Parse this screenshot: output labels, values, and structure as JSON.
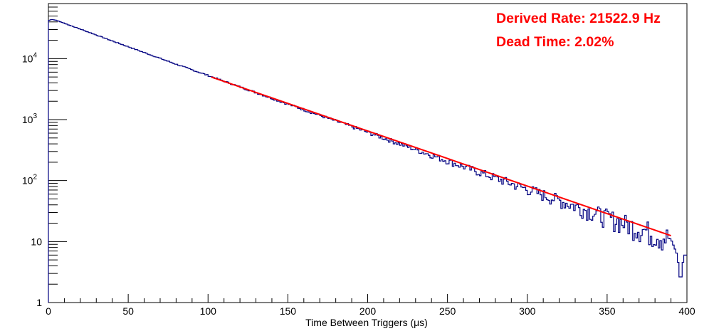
{
  "chart_data": {
    "type": "histogram",
    "title": "",
    "xlabel": "Time Between Triggers (μs)",
    "ylabel": "",
    "xlim": [
      0,
      400
    ],
    "ylim": [
      1,
      80000
    ],
    "yscale": "log",
    "grid": false,
    "x_ticks": [
      "0",
      "50",
      "100",
      "150",
      "200",
      "250",
      "300",
      "350",
      "400"
    ],
    "y_ticks": [
      {
        "base": "1",
        "exp": ""
      },
      {
        "base": "10",
        "exp": ""
      },
      {
        "base": "10",
        "exp": "2"
      },
      {
        "base": "10",
        "exp": "3"
      },
      {
        "base": "10",
        "exp": "4"
      }
    ],
    "series": [
      {
        "type": "step",
        "color": "#000080",
        "bin_width": 1,
        "profile": [
          {
            "x": 0,
            "y": 42000
          },
          {
            "x": 2,
            "y": 44000
          },
          {
            "x": 5,
            "y": 42500
          },
          {
            "x": 10,
            "y": 38000
          },
          {
            "x": 20,
            "y": 30500
          },
          {
            "x": 40,
            "y": 19500
          },
          {
            "x": 60,
            "y": 12600
          },
          {
            "x": 80,
            "y": 8100
          },
          {
            "x": 100,
            "y": 5300
          },
          {
            "x": 150,
            "y": 1800
          },
          {
            "x": 200,
            "y": 620
          },
          {
            "x": 250,
            "y": 210
          },
          {
            "x": 300,
            "y": 72
          },
          {
            "x": 350,
            "y": 25
          },
          {
            "x": 390,
            "y": 11
          },
          {
            "x": 394,
            "y": 6
          },
          {
            "x": 396,
            "y": 2
          },
          {
            "x": 398,
            "y": 6
          },
          {
            "x": 400,
            "y": 6
          }
        ]
      },
      {
        "type": "fit",
        "color": "#ff0000",
        "x": [
          102,
          390
        ],
        "y": [
          5000,
          12.5
        ]
      }
    ],
    "annotations": [
      "Derived Rate: 21522.9 Hz",
      "Dead Time: 2.02%"
    ],
    "colors": {
      "histogram": "#000080",
      "fit": "#ff0000",
      "annotation": "#ff0000"
    }
  }
}
